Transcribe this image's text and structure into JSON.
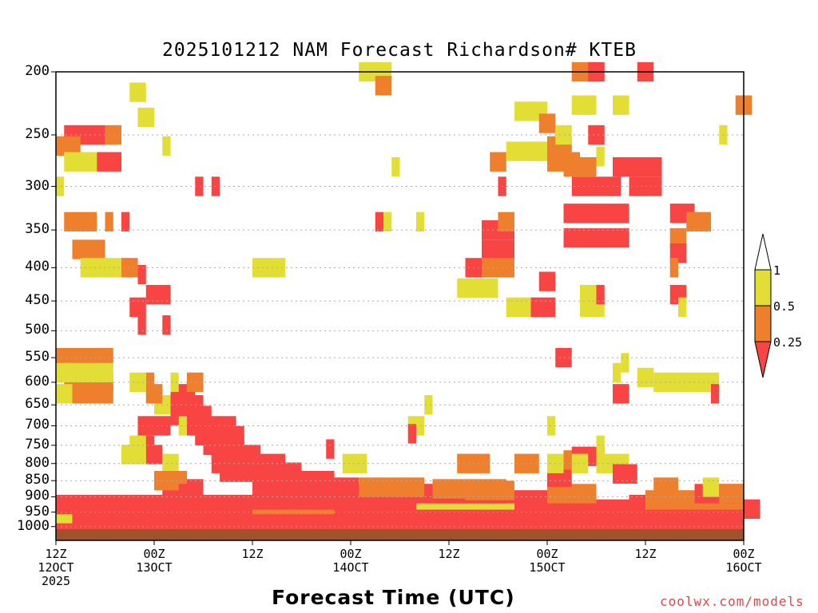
{
  "chart_data": {
    "type": "heatmap",
    "title": "2025101212 NAM Forecast Richardson# KTEB",
    "xlabel": "Forecast Time (UTC)",
    "credit": "coolwx.com/models",
    "yaxis": {
      "scale": "log-pressure",
      "range": [
        1050,
        200
      ],
      "ticks": [
        200,
        250,
        300,
        350,
        400,
        450,
        500,
        550,
        600,
        650,
        700,
        750,
        800,
        850,
        900,
        950,
        1000
      ]
    },
    "xaxis": {
      "range_hours": [
        0,
        84
      ],
      "ticks": [
        {
          "h": 0,
          "l1": "12Z",
          "l2": "12OCT",
          "l3": "2025"
        },
        {
          "h": 12,
          "l1": "00Z",
          "l2": "13OCT",
          "l3": ""
        },
        {
          "h": 24,
          "l1": "12Z",
          "l2": "",
          "l3": ""
        },
        {
          "h": 36,
          "l1": "00Z",
          "l2": "14OCT",
          "l3": ""
        },
        {
          "h": 48,
          "l1": "12Z",
          "l2": "",
          "l3": ""
        },
        {
          "h": 60,
          "l1": "00Z",
          "l2": "15OCT",
          "l3": ""
        },
        {
          "h": 72,
          "l1": "12Z",
          "l2": "",
          "l3": ""
        },
        {
          "h": 84,
          "l1": "00Z",
          "l2": "16OCT",
          "l3": ""
        }
      ]
    },
    "gridlines": "dotted",
    "colorbar": {
      "levels": [
        "0.25",
        "0.5",
        "1"
      ],
      "colors": {
        "lt025": "#f94444",
        "b025_05": "#ee7f2d",
        "b05_1": "#e3de35",
        "gt1": "#ffffff"
      }
    },
    "ground_color": "#a0522d",
    "cells": [
      [
        1000,
        0,
        84,
        "r"
      ],
      [
        975,
        0,
        84,
        "r"
      ],
      [
        955,
        0,
        2,
        "y"
      ],
      [
        955,
        2,
        82,
        "r"
      ],
      [
        940,
        2,
        84,
        "r"
      ],
      [
        925,
        0,
        24,
        "r"
      ],
      [
        925,
        24,
        10,
        "o"
      ],
      [
        925,
        36,
        12,
        "r"
      ],
      [
        910,
        24,
        20,
        "r"
      ],
      [
        910,
        44,
        12,
        "y"
      ],
      [
        910,
        56,
        10,
        "r"
      ],
      [
        925,
        70,
        14,
        "r"
      ],
      [
        910,
        72,
        12,
        "o"
      ],
      [
        890,
        26,
        30,
        "r"
      ],
      [
        870,
        25,
        12,
        "r"
      ],
      [
        870,
        37,
        8,
        "o"
      ],
      [
        850,
        24,
        10,
        "r"
      ],
      [
        825,
        20,
        10,
        "r"
      ],
      [
        800,
        19,
        9,
        "r"
      ],
      [
        775,
        19,
        6,
        "r"
      ],
      [
        750,
        18,
        5,
        "r"
      ],
      [
        725,
        17,
        6,
        "r"
      ],
      [
        700,
        16,
        6,
        "r"
      ],
      [
        675,
        14,
        5,
        "r"
      ],
      [
        650,
        14,
        4,
        "r"
      ],
      [
        625,
        14,
        3,
        "r"
      ],
      [
        700,
        10,
        4,
        "r"
      ],
      [
        750,
        10,
        2,
        "r"
      ],
      [
        775,
        11,
        2,
        "r"
      ],
      [
        700,
        15,
        1,
        "y"
      ],
      [
        650,
        12,
        2,
        "y"
      ],
      [
        625,
        11,
        2,
        "o"
      ],
      [
        600,
        11,
        1,
        "o"
      ],
      [
        600,
        16,
        2,
        "o"
      ],
      [
        750,
        9,
        2,
        "y"
      ],
      [
        775,
        8,
        3,
        "y"
      ],
      [
        800,
        13,
        2,
        "y"
      ],
      [
        850,
        14,
        2,
        "o"
      ],
      [
        875,
        16,
        2,
        "r"
      ],
      [
        890,
        13,
        4,
        "r"
      ],
      [
        850,
        12,
        3,
        "o"
      ],
      [
        890,
        45,
        10,
        "r"
      ],
      [
        875,
        46,
        9,
        "o"
      ],
      [
        880,
        50,
        6,
        "o"
      ],
      [
        890,
        60,
        6,
        "o"
      ],
      [
        840,
        60,
        3,
        "r"
      ],
      [
        800,
        49,
        4,
        "o"
      ],
      [
        800,
        60,
        2,
        "y"
      ],
      [
        790,
        62,
        3,
        "o"
      ],
      [
        780,
        63,
        4,
        "r"
      ],
      [
        800,
        66,
        4,
        "y"
      ],
      [
        830,
        68,
        3,
        "r"
      ],
      [
        870,
        73,
        3,
        "o"
      ],
      [
        890,
        78,
        6,
        "r"
      ],
      [
        870,
        79,
        2,
        "y"
      ],
      [
        890,
        81,
        3,
        "o"
      ],
      [
        600,
        73,
        8,
        "y"
      ],
      [
        625,
        68,
        2,
        "r"
      ],
      [
        625,
        80,
        1,
        "r"
      ],
      [
        590,
        71,
        2,
        "y"
      ],
      [
        560,
        69,
        1,
        "y"
      ],
      [
        550,
        0,
        7,
        "o"
      ],
      [
        600,
        1,
        6,
        "o"
      ],
      [
        625,
        2,
        5,
        "o"
      ],
      [
        580,
        0,
        7,
        "y"
      ],
      [
        625,
        0,
        2,
        "y"
      ],
      [
        600,
        9,
        2,
        "y"
      ],
      [
        600,
        14,
        1,
        "y"
      ],
      [
        250,
        1,
        5,
        "r"
      ],
      [
        260,
        0,
        3,
        "o"
      ],
      [
        275,
        1,
        4,
        "y"
      ],
      [
        250,
        6,
        2,
        "o"
      ],
      [
        275,
        5,
        3,
        "r"
      ],
      [
        300,
        0,
        1,
        "y"
      ],
      [
        340,
        1,
        4,
        "o"
      ],
      [
        340,
        8,
        1,
        "r"
      ],
      [
        340,
        6,
        1,
        "o"
      ],
      [
        375,
        2,
        4,
        "o"
      ],
      [
        400,
        3,
        6,
        "y"
      ],
      [
        400,
        8,
        2,
        "o"
      ],
      [
        410,
        10,
        1,
        "r"
      ],
      [
        440,
        11,
        3,
        "r"
      ],
      [
        460,
        9,
        2,
        "r"
      ],
      [
        490,
        10,
        1,
        "r"
      ],
      [
        490,
        13,
        1,
        "r"
      ],
      [
        215,
        9,
        2,
        "y"
      ],
      [
        235,
        10,
        2,
        "y"
      ],
      [
        260,
        13,
        1,
        "y"
      ],
      [
        300,
        17,
        1,
        "r"
      ],
      [
        300,
        19,
        1,
        "r"
      ],
      [
        400,
        24,
        4,
        "y"
      ],
      [
        200,
        37,
        4,
        "y"
      ],
      [
        210,
        39,
        2,
        "o"
      ],
      [
        340,
        39,
        1,
        "r"
      ],
      [
        340,
        40,
        1,
        "y"
      ],
      [
        340,
        44,
        1,
        "y"
      ],
      [
        280,
        41,
        1,
        "y"
      ],
      [
        350,
        52,
        4,
        "r"
      ],
      [
        340,
        54,
        2,
        "o"
      ],
      [
        375,
        52,
        4,
        "r"
      ],
      [
        400,
        52,
        4,
        "o"
      ],
      [
        430,
        49,
        5,
        "y"
      ],
      [
        460,
        58,
        3,
        "r"
      ],
      [
        460,
        55,
        3,
        "y"
      ],
      [
        420,
        59,
        2,
        "r"
      ],
      [
        400,
        50,
        2,
        "r"
      ],
      [
        330,
        62,
        8,
        "r"
      ],
      [
        300,
        63,
        6,
        "r"
      ],
      [
        360,
        62,
        8,
        "r"
      ],
      [
        280,
        62,
        4,
        "o"
      ],
      [
        265,
        55,
        8,
        "y"
      ],
      [
        275,
        53,
        2,
        "o"
      ],
      [
        300,
        54,
        1,
        "r"
      ],
      [
        230,
        56,
        4,
        "y"
      ],
      [
        240,
        59,
        2,
        "o"
      ],
      [
        260,
        60,
        3,
        "o"
      ],
      [
        275,
        60,
        4,
        "o"
      ],
      [
        200,
        63,
        3,
        "o"
      ],
      [
        200,
        65,
        2,
        "r"
      ],
      [
        200,
        71,
        2,
        "r"
      ],
      [
        225,
        63,
        3,
        "y"
      ],
      [
        250,
        65,
        2,
        "r"
      ],
      [
        250,
        61,
        2,
        "y"
      ],
      [
        280,
        68,
        6,
        "r"
      ],
      [
        300,
        70,
        4,
        "r"
      ],
      [
        330,
        75,
        3,
        "r"
      ],
      [
        340,
        77,
        3,
        "o"
      ],
      [
        360,
        75,
        2,
        "o"
      ],
      [
        380,
        75,
        2,
        "r"
      ],
      [
        400,
        75,
        1,
        "o"
      ],
      [
        440,
        75,
        2,
        "r"
      ],
      [
        460,
        76,
        1,
        "y"
      ],
      [
        250,
        81,
        1,
        "y"
      ],
      [
        225,
        83,
        2,
        "o"
      ],
      [
        225,
        68,
        2,
        "y"
      ],
      [
        270,
        66,
        1,
        "y"
      ],
      [
        460,
        64,
        3,
        "y"
      ],
      [
        440,
        66,
        1,
        "r"
      ],
      [
        440,
        64,
        2,
        "y"
      ],
      [
        550,
        61,
        2,
        "r"
      ],
      [
        580,
        68,
        1,
        "y"
      ],
      [
        800,
        56,
        3,
        "o"
      ],
      [
        800,
        63,
        2,
        "y"
      ],
      [
        750,
        66,
        1,
        "y"
      ],
      [
        700,
        43,
        2,
        "y"
      ],
      [
        700,
        60,
        1,
        "y"
      ],
      [
        650,
        45,
        1,
        "y"
      ],
      [
        720,
        43,
        1,
        "r"
      ],
      [
        760,
        33,
        1,
        "r"
      ],
      [
        800,
        35,
        3,
        "y"
      ]
    ]
  }
}
